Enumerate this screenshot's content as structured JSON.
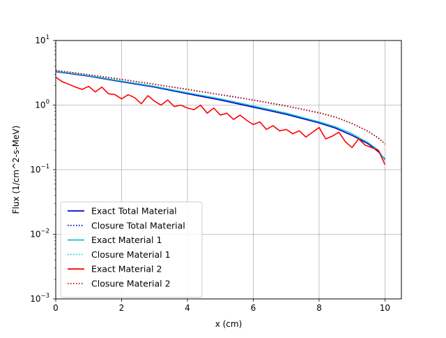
{
  "chart_data": {
    "type": "line",
    "title": "",
    "xlabel": "x (cm)",
    "ylabel": "Flux (1/cm^2-s-MeV)",
    "xlim": [
      0,
      10.5
    ],
    "ylim": [
      0.001,
      10
    ],
    "yscale": "log",
    "grid": true,
    "legend_position": "lower left",
    "x_ticks": [
      0,
      2,
      4,
      6,
      8,
      10
    ],
    "x_tick_labels": [
      "0",
      "2",
      "4",
      "6",
      "8",
      "10"
    ],
    "y_ticks": [
      0.001,
      0.01,
      0.1,
      1,
      10
    ],
    "y_tick_labels": [
      {
        "base": "10",
        "exp": "−3"
      },
      {
        "base": "10",
        "exp": "−2"
      },
      {
        "base": "10",
        "exp": "−1"
      },
      {
        "base": "10",
        "exp": "0"
      },
      {
        "base": "10",
        "exp": "1"
      }
    ],
    "series": [
      {
        "name": "Exact Total Material",
        "color": "#0000cc",
        "style": "solid",
        "x": [
          0,
          1,
          2,
          3,
          4,
          5,
          6,
          7,
          8,
          8.5,
          9,
          9.5,
          9.8,
          10
        ],
        "y": [
          3.3,
          2.8,
          2.3,
          1.9,
          1.5,
          1.2,
          0.93,
          0.72,
          0.53,
          0.44,
          0.34,
          0.25,
          0.19,
          0.145
        ]
      },
      {
        "name": "Closure Total Material",
        "color": "#0000cc",
        "style": "dotted",
        "x": [
          0,
          1,
          2,
          3,
          4,
          5,
          6,
          7,
          8,
          8.5,
          9,
          9.5,
          9.8,
          10
        ],
        "y": [
          3.45,
          2.95,
          2.5,
          2.1,
          1.75,
          1.45,
          1.2,
          0.97,
          0.76,
          0.65,
          0.52,
          0.39,
          0.31,
          0.25
        ]
      },
      {
        "name": "Exact Material 1",
        "color": "#17becf",
        "style": "solid",
        "x": [
          0,
          1,
          2,
          3,
          4,
          5,
          6,
          7,
          8,
          8.5,
          9,
          9.5,
          9.8,
          10
        ],
        "y": [
          3.35,
          2.85,
          2.35,
          1.95,
          1.55,
          1.25,
          0.97,
          0.75,
          0.55,
          0.46,
          0.36,
          0.26,
          0.2,
          0.14
        ]
      },
      {
        "name": "Closure Material 1",
        "color": "#17becf",
        "style": "dotted",
        "x": [
          0,
          1,
          2,
          3,
          4,
          5,
          6,
          7,
          8,
          8.5,
          9,
          9.5,
          9.8,
          10
        ],
        "y": [
          3.45,
          2.95,
          2.5,
          2.1,
          1.75,
          1.45,
          1.2,
          0.97,
          0.76,
          0.65,
          0.52,
          0.39,
          0.31,
          0.25
        ]
      },
      {
        "name": "Exact Material 2",
        "color": "#ff0000",
        "style": "solid",
        "x": [
          0,
          0.2,
          0.4,
          0.6,
          0.8,
          1,
          1.2,
          1.4,
          1.6,
          1.8,
          2,
          2.2,
          2.4,
          2.6,
          2.8,
          3,
          3.2,
          3.4,
          3.6,
          3.8,
          4,
          4.2,
          4.4,
          4.6,
          4.8,
          5,
          5.2,
          5.4,
          5.6,
          5.8,
          6,
          6.2,
          6.4,
          6.6,
          6.8,
          7,
          7.2,
          7.4,
          7.6,
          7.8,
          8,
          8.2,
          8.4,
          8.6,
          8.8,
          9,
          9.2,
          9.4,
          9.6,
          9.8,
          10
        ],
        "y": [
          2.7,
          2.3,
          2.1,
          1.9,
          1.75,
          1.95,
          1.6,
          1.9,
          1.5,
          1.45,
          1.25,
          1.45,
          1.3,
          1.05,
          1.4,
          1.15,
          1.0,
          1.2,
          0.95,
          1.0,
          0.9,
          0.85,
          1.0,
          0.75,
          0.9,
          0.7,
          0.75,
          0.6,
          0.7,
          0.58,
          0.5,
          0.55,
          0.42,
          0.48,
          0.4,
          0.42,
          0.36,
          0.4,
          0.32,
          0.38,
          0.45,
          0.3,
          0.33,
          0.38,
          0.27,
          0.22,
          0.3,
          0.24,
          0.22,
          0.2,
          0.12
        ]
      },
      {
        "name": "Closure Material 2",
        "color": "#cc0000",
        "style": "dotted",
        "x": [
          0,
          1,
          2,
          3,
          4,
          5,
          6,
          7,
          8,
          8.5,
          9,
          9.5,
          9.8,
          10
        ],
        "y": [
          3.45,
          2.95,
          2.5,
          2.1,
          1.75,
          1.45,
          1.2,
          0.97,
          0.76,
          0.65,
          0.52,
          0.39,
          0.31,
          0.25
        ]
      }
    ]
  }
}
